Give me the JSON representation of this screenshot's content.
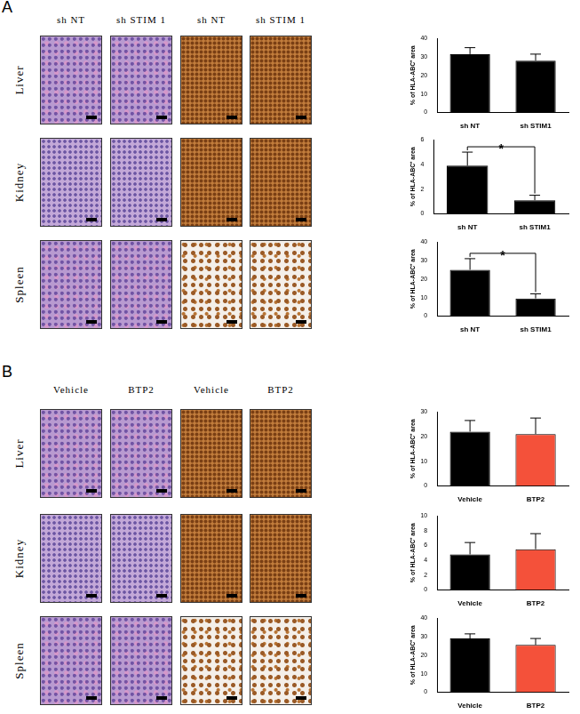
{
  "panels": [
    {
      "label": "A",
      "columns": [
        "sh NT",
        "sh STIM 1",
        "sh NT",
        "sh STIM 1"
      ],
      "rows": [
        "Liver",
        "Kidney",
        "Spleen"
      ]
    },
    {
      "label": "B",
      "columns": [
        "Vehicle",
        "BTP2",
        "Vehicle",
        "BTP2"
      ],
      "rows": [
        "Liver",
        "Kidney",
        "Spleen"
      ]
    }
  ],
  "chart_data": [
    {
      "type": "bar",
      "categories": [
        "sh NT",
        "sh STIM1"
      ],
      "values": [
        31.5,
        28
      ],
      "errors": [
        3.5,
        3.5
      ],
      "colors": [
        "#000000",
        "#000000"
      ],
      "y_label": "% of HLA-ABC⁺ area",
      "ylim": [
        0,
        40
      ],
      "yticks": [
        0,
        10,
        20,
        30,
        40
      ],
      "grid": false
    },
    {
      "type": "bar",
      "categories": [
        "sh NT",
        "sh STIM1"
      ],
      "values": [
        3.9,
        1.1
      ],
      "errors": [
        1.1,
        0.4
      ],
      "colors": [
        "#000000",
        "#000000"
      ],
      "y_label": "% of HLA-ABC⁺ area",
      "ylim": [
        0,
        6
      ],
      "yticks": [
        0,
        2,
        4,
        6
      ],
      "grid": false,
      "annotation": "*"
    },
    {
      "type": "bar",
      "categories": [
        "sh NT",
        "sh STIM1"
      ],
      "values": [
        25,
        9.5
      ],
      "errors": [
        6,
        2.5
      ],
      "colors": [
        "#000000",
        "#000000"
      ],
      "y_label": "% of HLA-ABC⁺ area",
      "ylim": [
        0,
        40
      ],
      "yticks": [
        0,
        10,
        20,
        30,
        40
      ],
      "grid": false,
      "annotation": "*"
    },
    {
      "type": "bar",
      "categories": [
        "Vehicle",
        "BTP2"
      ],
      "values": [
        22,
        21
      ],
      "errors": [
        4.5,
        6.5
      ],
      "colors": [
        "#000000",
        "#f4513a"
      ],
      "y_label": "% of HLA-ABC⁺ area",
      "ylim": [
        0,
        30
      ],
      "yticks": [
        0,
        10,
        20,
        30
      ],
      "grid": false
    },
    {
      "type": "bar",
      "categories": [
        "Vehicle",
        "BTP2"
      ],
      "values": [
        4.8,
        5.5
      ],
      "errors": [
        1.6,
        2.1
      ],
      "colors": [
        "#000000",
        "#f4513a"
      ],
      "y_label": "% of HLA-ABC⁺ area",
      "ylim": [
        0,
        10
      ],
      "yticks": [
        0,
        2,
        4,
        6,
        8,
        10
      ],
      "grid": false
    },
    {
      "type": "bar",
      "categories": [
        "Vehicle",
        "BTP2"
      ],
      "values": [
        29,
        25.5
      ],
      "errors": [
        2.5,
        3.5
      ],
      "colors": [
        "#000000",
        "#f4513a"
      ],
      "y_label": "% of HLA-ABC⁺ area",
      "ylim": [
        0,
        40
      ],
      "yticks": [
        0,
        10,
        20,
        30,
        40
      ],
      "grid": false
    }
  ]
}
